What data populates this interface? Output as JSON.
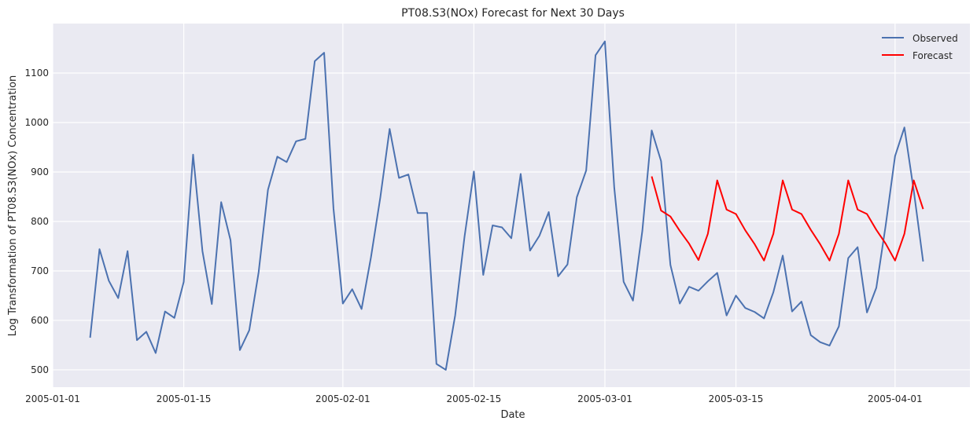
{
  "chart_data": {
    "type": "line",
    "title": "PT08.S3(NOx) Forecast for Next 30 Days",
    "xlabel": "Date",
    "ylabel": "Log Transformation of PT08.S3(NOx) Concentration",
    "xlim": [
      "2005-01-01",
      "2005-04-09"
    ],
    "ylim": [
      465,
      1200
    ],
    "x_ticks": [
      {
        "date": "2005-01-01",
        "label": "2005-01-01"
      },
      {
        "date": "2005-01-15",
        "label": "2005-01-15"
      },
      {
        "date": "2005-02-01",
        "label": "2005-02-01"
      },
      {
        "date": "2005-02-15",
        "label": "2005-02-15"
      },
      {
        "date": "2005-03-01",
        "label": "2005-03-01"
      },
      {
        "date": "2005-03-15",
        "label": "2005-03-15"
      },
      {
        "date": "2005-04-01",
        "label": "2005-04-01"
      }
    ],
    "y_ticks": [
      {
        "value": 500,
        "label": "500"
      },
      {
        "value": 600,
        "label": "600"
      },
      {
        "value": 700,
        "label": "700"
      },
      {
        "value": 800,
        "label": "800"
      },
      {
        "value": 900,
        "label": "900"
      },
      {
        "value": 1000,
        "label": "1000"
      },
      {
        "value": 1100,
        "label": "1100"
      }
    ],
    "grid": true,
    "legend_position": "top-right",
    "series": [
      {
        "name": "Observed",
        "color": "#4c72b0",
        "points": [
          {
            "x": "2005-01-05",
            "y": 565
          },
          {
            "x": "2005-01-06",
            "y": 744
          },
          {
            "x": "2005-01-07",
            "y": 680
          },
          {
            "x": "2005-01-08",
            "y": 645
          },
          {
            "x": "2005-01-09",
            "y": 740
          },
          {
            "x": "2005-01-10",
            "y": 560
          },
          {
            "x": "2005-01-11",
            "y": 577
          },
          {
            "x": "2005-01-12",
            "y": 534
          },
          {
            "x": "2005-01-13",
            "y": 618
          },
          {
            "x": "2005-01-14",
            "y": 605
          },
          {
            "x": "2005-01-15",
            "y": 678
          },
          {
            "x": "2005-01-16",
            "y": 935
          },
          {
            "x": "2005-01-17",
            "y": 740
          },
          {
            "x": "2005-01-18",
            "y": 633
          },
          {
            "x": "2005-01-19",
            "y": 839
          },
          {
            "x": "2005-01-20",
            "y": 762
          },
          {
            "x": "2005-01-21",
            "y": 540
          },
          {
            "x": "2005-01-22",
            "y": 580
          },
          {
            "x": "2005-01-23",
            "y": 697
          },
          {
            "x": "2005-01-24",
            "y": 864
          },
          {
            "x": "2005-01-25",
            "y": 931
          },
          {
            "x": "2005-01-26",
            "y": 920
          },
          {
            "x": "2005-01-27",
            "y": 962
          },
          {
            "x": "2005-01-28",
            "y": 967
          },
          {
            "x": "2005-01-29",
            "y": 1124
          },
          {
            "x": "2005-01-30",
            "y": 1141
          },
          {
            "x": "2005-01-31",
            "y": 826
          },
          {
            "x": "2005-02-01",
            "y": 634
          },
          {
            "x": "2005-02-02",
            "y": 663
          },
          {
            "x": "2005-02-03",
            "y": 623
          },
          {
            "x": "2005-02-04",
            "y": 727
          },
          {
            "x": "2005-02-05",
            "y": 848
          },
          {
            "x": "2005-02-06",
            "y": 987
          },
          {
            "x": "2005-02-07",
            "y": 888
          },
          {
            "x": "2005-02-08",
            "y": 895
          },
          {
            "x": "2005-02-09",
            "y": 817
          },
          {
            "x": "2005-02-10",
            "y": 817
          },
          {
            "x": "2005-02-11",
            "y": 512
          },
          {
            "x": "2005-02-12",
            "y": 500
          },
          {
            "x": "2005-02-13",
            "y": 610
          },
          {
            "x": "2005-02-14",
            "y": 769
          },
          {
            "x": "2005-02-15",
            "y": 901
          },
          {
            "x": "2005-02-16",
            "y": 692
          },
          {
            "x": "2005-02-17",
            "y": 792
          },
          {
            "x": "2005-02-18",
            "y": 788
          },
          {
            "x": "2005-02-19",
            "y": 766
          },
          {
            "x": "2005-02-20",
            "y": 896
          },
          {
            "x": "2005-02-21",
            "y": 741
          },
          {
            "x": "2005-02-22",
            "y": 771
          },
          {
            "x": "2005-02-23",
            "y": 819
          },
          {
            "x": "2005-02-24",
            "y": 689
          },
          {
            "x": "2005-02-25",
            "y": 713
          },
          {
            "x": "2005-02-26",
            "y": 849
          },
          {
            "x": "2005-02-27",
            "y": 903
          },
          {
            "x": "2005-02-28",
            "y": 1136
          },
          {
            "x": "2005-03-01",
            "y": 1164
          },
          {
            "x": "2005-03-02",
            "y": 868
          },
          {
            "x": "2005-03-03",
            "y": 678
          },
          {
            "x": "2005-03-04",
            "y": 640
          },
          {
            "x": "2005-03-05",
            "y": 781
          },
          {
            "x": "2005-03-06",
            "y": 984
          },
          {
            "x": "2005-03-07",
            "y": 922
          },
          {
            "x": "2005-03-08",
            "y": 712
          },
          {
            "x": "2005-03-09",
            "y": 634
          },
          {
            "x": "2005-03-10",
            "y": 668
          },
          {
            "x": "2005-03-11",
            "y": 660
          },
          {
            "x": "2005-03-12",
            "y": 679
          },
          {
            "x": "2005-03-13",
            "y": 696
          },
          {
            "x": "2005-03-14",
            "y": 610
          },
          {
            "x": "2005-03-15",
            "y": 650
          },
          {
            "x": "2005-03-16",
            "y": 625
          },
          {
            "x": "2005-03-17",
            "y": 617
          },
          {
            "x": "2005-03-18",
            "y": 604
          },
          {
            "x": "2005-03-19",
            "y": 657
          },
          {
            "x": "2005-03-20",
            "y": 731
          },
          {
            "x": "2005-03-21",
            "y": 618
          },
          {
            "x": "2005-03-22",
            "y": 638
          },
          {
            "x": "2005-03-23",
            "y": 570
          },
          {
            "x": "2005-03-24",
            "y": 556
          },
          {
            "x": "2005-03-25",
            "y": 549
          },
          {
            "x": "2005-03-26",
            "y": 588
          },
          {
            "x": "2005-03-27",
            "y": 726
          },
          {
            "x": "2005-03-28",
            "y": 748
          },
          {
            "x": "2005-03-29",
            "y": 616
          },
          {
            "x": "2005-03-30",
            "y": 666
          },
          {
            "x": "2005-03-31",
            "y": 792
          },
          {
            "x": "2005-04-01",
            "y": 932
          },
          {
            "x": "2005-04-02",
            "y": 990
          },
          {
            "x": "2005-04-03",
            "y": 862
          },
          {
            "x": "2005-04-04",
            "y": 719
          }
        ]
      },
      {
        "name": "Forecast",
        "color": "#ff0000",
        "points": [
          {
            "x": "2005-03-06",
            "y": 891
          },
          {
            "x": "2005-03-07",
            "y": 822
          },
          {
            "x": "2005-03-08",
            "y": 810
          },
          {
            "x": "2005-03-09",
            "y": 781
          },
          {
            "x": "2005-03-10",
            "y": 755
          },
          {
            "x": "2005-03-11",
            "y": 722
          },
          {
            "x": "2005-03-12",
            "y": 775
          },
          {
            "x": "2005-03-13",
            "y": 883
          },
          {
            "x": "2005-03-14",
            "y": 824
          },
          {
            "x": "2005-03-15",
            "y": 815
          },
          {
            "x": "2005-03-16",
            "y": 782
          },
          {
            "x": "2005-03-17",
            "y": 754
          },
          {
            "x": "2005-03-18",
            "y": 721
          },
          {
            "x": "2005-03-19",
            "y": 775
          },
          {
            "x": "2005-03-20",
            "y": 883
          },
          {
            "x": "2005-03-21",
            "y": 824
          },
          {
            "x": "2005-03-22",
            "y": 815
          },
          {
            "x": "2005-03-23",
            "y": 783
          },
          {
            "x": "2005-03-24",
            "y": 754
          },
          {
            "x": "2005-03-25",
            "y": 721
          },
          {
            "x": "2005-03-26",
            "y": 775
          },
          {
            "x": "2005-03-27",
            "y": 883
          },
          {
            "x": "2005-03-28",
            "y": 824
          },
          {
            "x": "2005-03-29",
            "y": 815
          },
          {
            "x": "2005-03-30",
            "y": 783
          },
          {
            "x": "2005-03-31",
            "y": 755
          },
          {
            "x": "2005-04-01",
            "y": 721
          },
          {
            "x": "2005-04-02",
            "y": 775
          },
          {
            "x": "2005-04-03",
            "y": 883
          },
          {
            "x": "2005-04-04",
            "y": 825
          }
        ]
      }
    ]
  }
}
